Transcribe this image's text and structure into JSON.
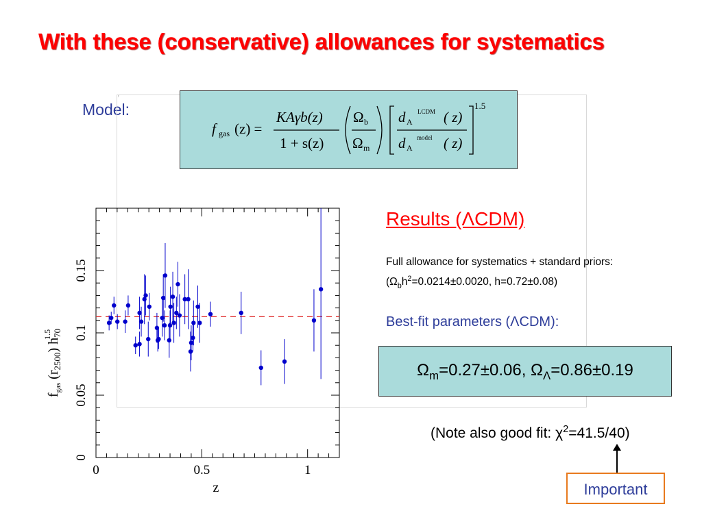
{
  "slide": {
    "title": "With these (conservative) allowances for systematics",
    "model_label": "Model:",
    "formula": {
      "lhs_f": "f",
      "lhs_sub": "gas",
      "lhs_arg": "(z) =",
      "num1": "KAγb(z)",
      "den1": "1 + s(z)",
      "omega_b_sym": "Ω",
      "omega_b_sub": "b",
      "omega_m_sym": "Ω",
      "omega_m_sub": "m",
      "dA_top_d": "d",
      "dA_top_A": "A",
      "dA_top_sup": "LCDM",
      "dA_top_arg": "( z)",
      "dA_bot_d": "d",
      "dA_bot_A": "A",
      "dA_bot_sup": "model",
      "dA_bot_arg": "( z)",
      "exponent": "1.5"
    },
    "results_title": "Results (ΛCDM)",
    "allowance_line1": "Full allowance for systematics + standard priors:",
    "allowance_line2_prefix": "(Ω",
    "allowance_line2_sub": "b",
    "allowance_line2_h": "h",
    "allowance_line2_sup": "2",
    "allowance_line2_rest": "=0.0214±0.0020, h=0.72±0.08)",
    "bestfit_label": "Best-fit parameters (ΛCDM):",
    "result": {
      "om_sym": "Ω",
      "om_sub": "m",
      "om_val": "=0.27±0.06, ",
      "ol_sym": "Ω",
      "ol_sub": "Λ",
      "ol_val": "=0.86±0.19"
    },
    "note_prefix": "(Note also good fit:  χ",
    "note_sup": "2",
    "note_rest": "=41.5/40)",
    "important_label": "Important",
    "colors": {
      "title": "#ff0000",
      "accent_blue": "#2e3d9a",
      "box_fill": "#aadbdb",
      "important_border": "#e87a1e",
      "data_points": "#0000cc",
      "fit_line": "#e03030"
    }
  },
  "chart_data": {
    "type": "scatter",
    "xlabel": "z",
    "ylabel_parts": {
      "f": "f",
      "f_sub": "gas",
      "r": " (r",
      "r_sub": "2500",
      "close": ") h",
      "h_sub": "70",
      "h_sup": "1.5"
    },
    "xlim": [
      0,
      1.15
    ],
    "ylim": [
      0,
      0.2
    ],
    "x_ticks": [
      {
        "v": 0,
        "label": "0"
      },
      {
        "v": 0.5,
        "label": "0.5"
      },
      {
        "v": 1,
        "label": "1"
      }
    ],
    "y_ticks": [
      {
        "v": 0,
        "label": "0"
      },
      {
        "v": 0.05,
        "label": "0.05"
      },
      {
        "v": 0.1,
        "label": "0.1"
      },
      {
        "v": 0.15,
        "label": "0.15"
      }
    ],
    "fit_line_y": 0.113,
    "points": [
      {
        "x": 0.062,
        "y": 0.108,
        "err": 0.006
      },
      {
        "x": 0.072,
        "y": 0.112,
        "err": 0.005
      },
      {
        "x": 0.085,
        "y": 0.122,
        "err": 0.007
      },
      {
        "x": 0.101,
        "y": 0.109,
        "err": 0.006
      },
      {
        "x": 0.138,
        "y": 0.109,
        "err": 0.009
      },
      {
        "x": 0.152,
        "y": 0.122,
        "err": 0.008
      },
      {
        "x": 0.187,
        "y": 0.09,
        "err": 0.007
      },
      {
        "x": 0.206,
        "y": 0.091,
        "err": 0.01
      },
      {
        "x": 0.206,
        "y": 0.116,
        "err": 0.013
      },
      {
        "x": 0.214,
        "y": 0.109,
        "err": 0.012
      },
      {
        "x": 0.229,
        "y": 0.127,
        "err": 0.02
      },
      {
        "x": 0.235,
        "y": 0.13,
        "err": 0.016
      },
      {
        "x": 0.247,
        "y": 0.095,
        "err": 0.014
      },
      {
        "x": 0.252,
        "y": 0.121,
        "err": 0.011
      },
      {
        "x": 0.288,
        "y": 0.104,
        "err": 0.012
      },
      {
        "x": 0.292,
        "y": 0.094,
        "err": 0.009
      },
      {
        "x": 0.296,
        "y": 0.095,
        "err": 0.008
      },
      {
        "x": 0.313,
        "y": 0.112,
        "err": 0.015
      },
      {
        "x": 0.318,
        "y": 0.128,
        "err": 0.019
      },
      {
        "x": 0.324,
        "y": 0.106,
        "err": 0.012
      },
      {
        "x": 0.327,
        "y": 0.146,
        "err": 0.026
      },
      {
        "x": 0.346,
        "y": 0.094,
        "err": 0.014
      },
      {
        "x": 0.35,
        "y": 0.106,
        "err": 0.012
      },
      {
        "x": 0.352,
        "y": 0.121,
        "err": 0.016
      },
      {
        "x": 0.363,
        "y": 0.129,
        "err": 0.02
      },
      {
        "x": 0.368,
        "y": 0.108,
        "err": 0.016
      },
      {
        "x": 0.38,
        "y": 0.116,
        "err": 0.013
      },
      {
        "x": 0.387,
        "y": 0.139,
        "err": 0.018
      },
      {
        "x": 0.395,
        "y": 0.114,
        "err": 0.017
      },
      {
        "x": 0.42,
        "y": 0.127,
        "err": 0.02
      },
      {
        "x": 0.436,
        "y": 0.127,
        "err": 0.024
      },
      {
        "x": 0.447,
        "y": 0.085,
        "err": 0.016
      },
      {
        "x": 0.45,
        "y": 0.092,
        "err": 0.014
      },
      {
        "x": 0.458,
        "y": 0.096,
        "err": 0.011
      },
      {
        "x": 0.461,
        "y": 0.108,
        "err": 0.018
      },
      {
        "x": 0.481,
        "y": 0.121,
        "err": 0.017
      },
      {
        "x": 0.49,
        "y": 0.108,
        "err": 0.016
      },
      {
        "x": 0.541,
        "y": 0.115,
        "err": 0.01
      },
      {
        "x": 0.686,
        "y": 0.116,
        "err": 0.017
      },
      {
        "x": 0.78,
        "y": 0.072,
        "err": 0.014
      },
      {
        "x": 0.891,
        "y": 0.077,
        "err": 0.018
      },
      {
        "x": 1.03,
        "y": 0.11,
        "err": 0.025
      },
      {
        "x": 1.063,
        "y": 0.135,
        "err": 0.072
      }
    ]
  }
}
